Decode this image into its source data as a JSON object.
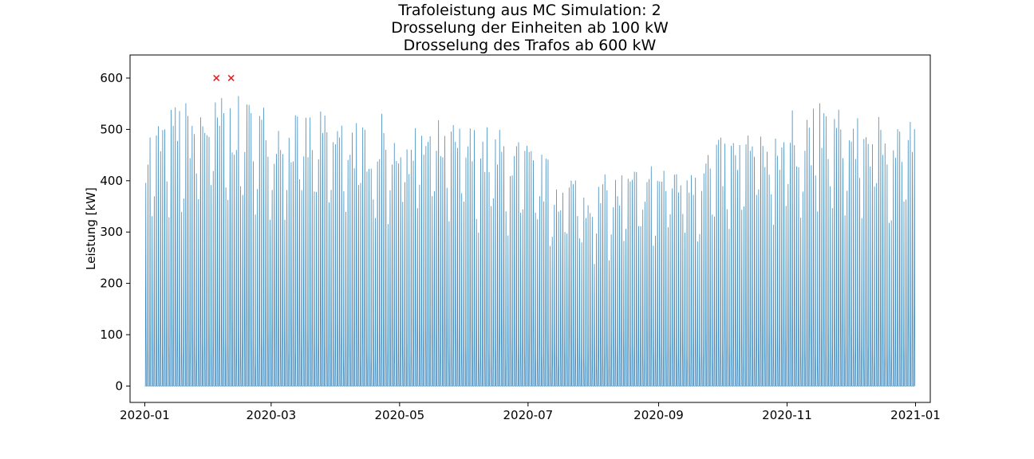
{
  "chart_data": {
    "type": "line",
    "title_lines": [
      "Trafoleistung aus MC Simulation: 2",
      "Drosselung der Einheiten ab 100 kW",
      "Drosselung des Trafos ab 600 kW"
    ],
    "xlabel": "",
    "ylabel": "Leistung [kW]",
    "xlim": [
      "2019-12-25",
      "2021-01-08"
    ],
    "ylim": [
      -32,
      645
    ],
    "x_ticks": [
      "2020-01",
      "2020-03",
      "2020-05",
      "2020-07",
      "2020-09",
      "2020-11",
      "2021-01"
    ],
    "x_tick_dates": [
      "2020-01-01",
      "2020-03-01",
      "2020-05-01",
      "2020-07-01",
      "2020-09-01",
      "2020-11-01",
      "2021-01-01"
    ],
    "y_ticks": [
      0,
      100,
      200,
      300,
      400,
      500,
      600
    ],
    "grid": false,
    "resolution": "15min",
    "series": [
      {
        "color": "#1f77b4",
        "x_start": "2020-01-01",
        "x_end": "2020-12-31",
        "daily_peak_envelope_dates": [
          "2020-01-01",
          "2020-01-15",
          "2020-02-01",
          "2020-02-15",
          "2020-03-01",
          "2020-03-15",
          "2020-04-01",
          "2020-04-15",
          "2020-05-01",
          "2020-05-15",
          "2020-06-01",
          "2020-06-15",
          "2020-07-01",
          "2020-07-15",
          "2020-08-01",
          "2020-08-15",
          "2020-09-01",
          "2020-09-15",
          "2020-10-01",
          "2020-10-15",
          "2020-11-01",
          "2020-11-15",
          "2020-12-01",
          "2020-12-15",
          "2020-12-31"
        ],
        "daily_peak_envelope_values": [
          450,
          490,
          505,
          500,
          490,
          475,
          475,
          470,
          470,
          465,
          455,
          450,
          420,
          380,
          360,
          375,
          395,
          410,
          430,
          450,
          475,
          490,
          480,
          475,
          470
        ],
        "min_value": 0
      }
    ],
    "markers": {
      "symbol": "x",
      "color": "#d62728",
      "points": [
        {
          "x": "2020-02-04",
          "y": 600
        },
        {
          "x": "2020-02-11",
          "y": 600
        }
      ]
    }
  }
}
